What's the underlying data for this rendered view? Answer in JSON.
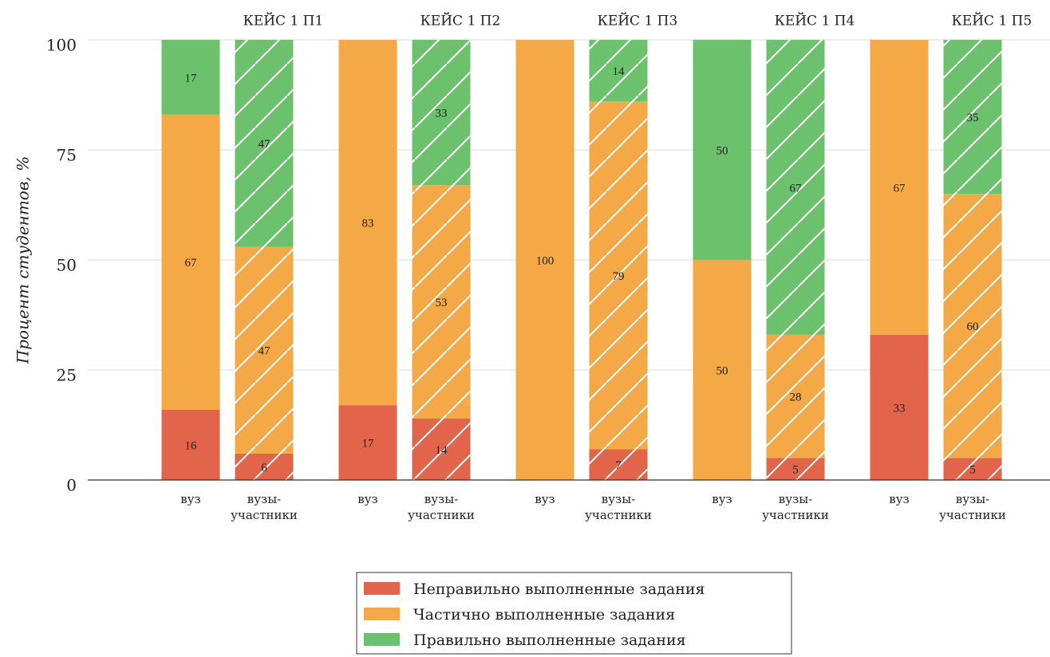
{
  "chart_data": {
    "type": "stacked_bar",
    "ylabel": "Процент студентов, %",
    "groups": [
      "КЕЙС 1 П1",
      "КЕЙС 1 П2",
      "КЕЙС 1 П3",
      "КЕЙС 1 П4",
      "КЕЙС 1 П5"
    ],
    "categories": [
      [
        "вуз"
      ],
      [
        "вузы-",
        "участники"
      ],
      [
        "вуз"
      ],
      [
        "вузы-",
        "участники"
      ],
      [
        "вуз"
      ],
      [
        "вузы-",
        "участники"
      ],
      [
        "вуз"
      ],
      [
        "вузы-",
        "участники"
      ],
      [
        "вуз"
      ],
      [
        "вузы-",
        "участники"
      ]
    ],
    "hatch": [
      false,
      true,
      false,
      true,
      false,
      true,
      false,
      true,
      false,
      true
    ],
    "series": [
      {
        "name": "Неправильно выполненные задания",
        "color": "#e1644b",
        "values": [
          16,
          6,
          17,
          14,
          0,
          7,
          0,
          5,
          33,
          5
        ]
      },
      {
        "name": "Частично выполненные задания",
        "color": "#f4a946",
        "values": [
          67,
          47,
          83,
          53,
          100,
          79,
          50,
          28,
          67,
          60
        ]
      },
      {
        "name": "Правильно выполненные задания",
        "color": "#6cc16c",
        "values": [
          17,
          47,
          0,
          33,
          0,
          14,
          50,
          67,
          0,
          35
        ]
      }
    ],
    "ylim": [
      0,
      100
    ],
    "yticks": [
      0,
      25,
      50,
      75,
      100
    ],
    "grid": true,
    "legend": "bottom"
  }
}
